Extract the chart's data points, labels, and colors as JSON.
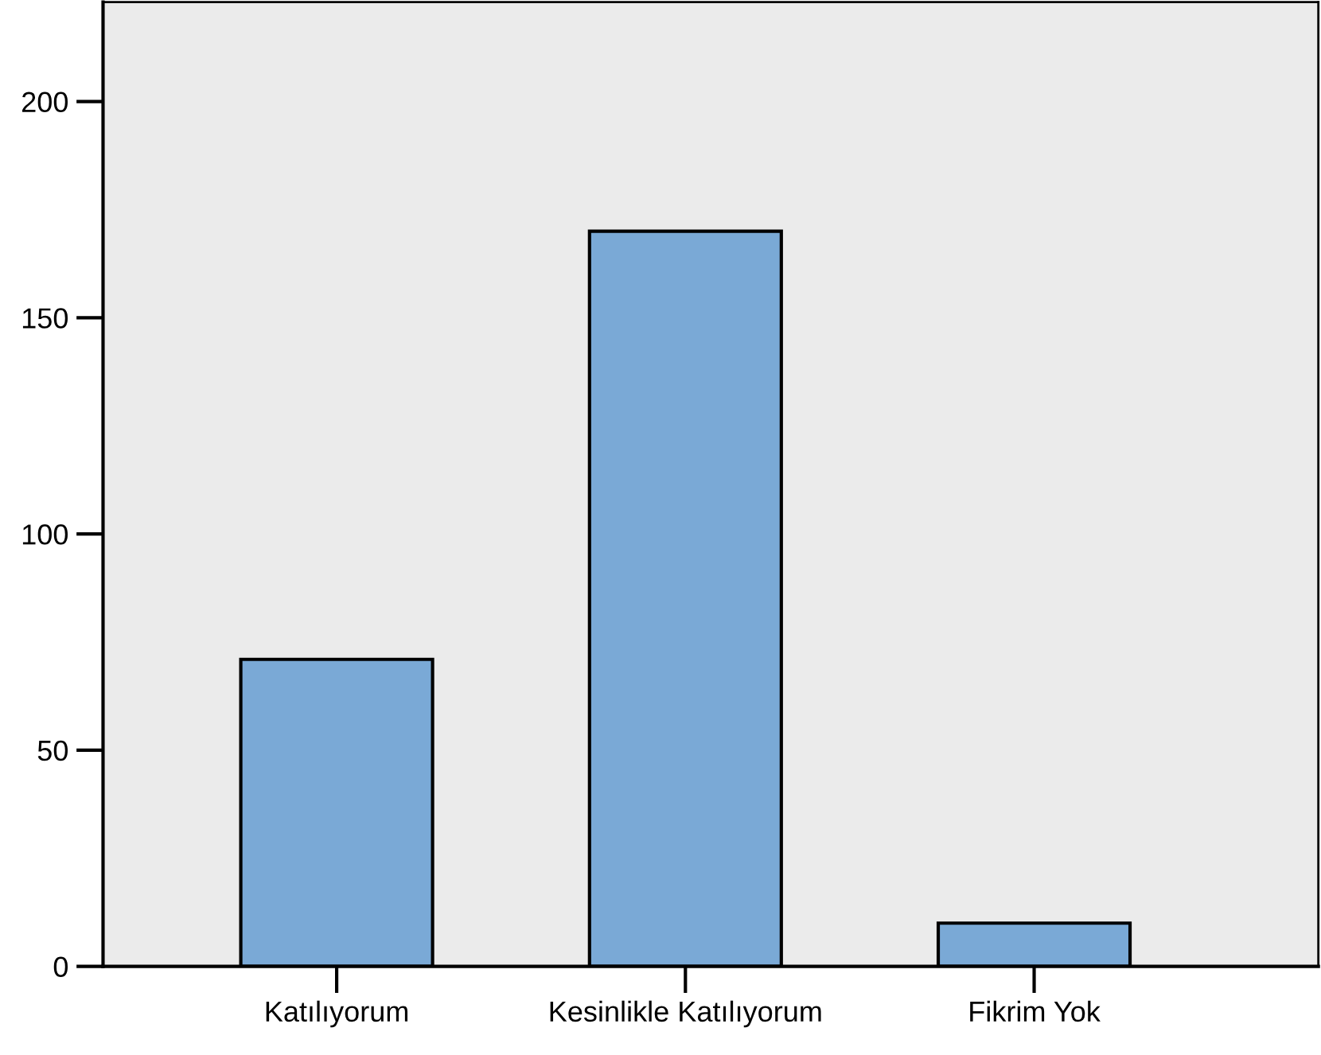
{
  "chart_data": {
    "type": "bar",
    "categories": [
      "Katılıyorum",
      "Kesinlikle Katılıyorum",
      "Fikrim Yok"
    ],
    "values": [
      71,
      170,
      10
    ],
    "color": "#7aa9d6",
    "ylim": [
      0,
      223
    ],
    "yticks": [
      0,
      50,
      100,
      150,
      200
    ],
    "grid": false,
    "legend": false
  }
}
